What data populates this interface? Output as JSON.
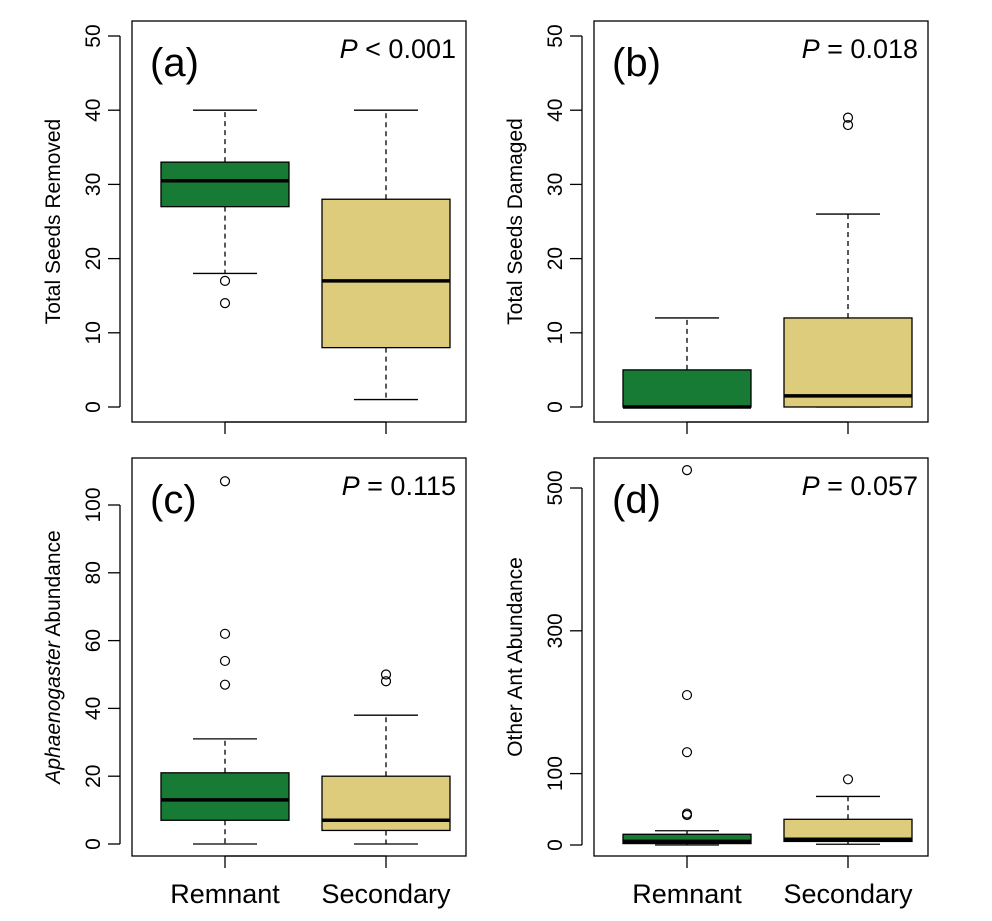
{
  "colors": {
    "remnant": "#177a35",
    "secondary": "#dccc7c"
  },
  "chart_data": [
    {
      "type": "box",
      "panel_label": "(a)",
      "p_prefix": "P",
      "p_rest": " < 0.001",
      "ylabel": "Total Seeds Removed",
      "ylabel_italic": "",
      "ylim": [
        0,
        50
      ],
      "yticks": [
        0,
        10,
        20,
        30,
        40,
        50
      ],
      "categories": [
        "Remnant",
        "Secondary"
      ],
      "show_categories": false,
      "boxes": [
        {
          "min": 18,
          "q1": 27,
          "median": 30.5,
          "q3": 33,
          "max": 40,
          "outliers": [
            17,
            14
          ]
        },
        {
          "min": 1,
          "q1": 8,
          "median": 17,
          "q3": 28,
          "max": 40,
          "outliers": []
        }
      ]
    },
    {
      "type": "box",
      "panel_label": "(b)",
      "p_prefix": "P",
      "p_rest": " = 0.018",
      "ylabel": "Total Seeds Damaged",
      "ylabel_italic": "",
      "ylim": [
        0,
        50
      ],
      "yticks": [
        0,
        10,
        20,
        30,
        40,
        50
      ],
      "categories": [
        "Remnant",
        "Secondary"
      ],
      "show_categories": false,
      "boxes": [
        {
          "min": 0,
          "q1": 0,
          "median": 0,
          "q3": 5,
          "max": 12,
          "outliers": []
        },
        {
          "min": 0,
          "q1": 0,
          "median": 1.5,
          "q3": 12,
          "max": 26,
          "outliers": [
            38,
            39
          ]
        }
      ]
    },
    {
      "type": "box",
      "panel_label": "(c)",
      "p_prefix": "P",
      "p_rest": " = 0.115",
      "ylabel": " Abundance",
      "ylabel_italic": "Aphaenogaster",
      "ylim": [
        0,
        100
      ],
      "yticks": [
        0,
        20,
        40,
        60,
        80,
        100
      ],
      "categories": [
        "Remnant",
        "Secondary"
      ],
      "show_categories": true,
      "boxes": [
        {
          "min": 0,
          "q1": 7,
          "median": 13,
          "q3": 21,
          "max": 31,
          "outliers": [
            47,
            54,
            62,
            107
          ]
        },
        {
          "min": 0,
          "q1": 4,
          "median": 7,
          "q3": 20,
          "max": 38,
          "outliers": [
            48,
            50
          ]
        }
      ]
    },
    {
      "type": "box",
      "panel_label": "(d)",
      "p_prefix": "P",
      "p_rest": " = 0.057",
      "ylabel": "Other Ant Abundance",
      "ylabel_italic": "",
      "ylim": [
        0,
        500
      ],
      "yticks": [
        0,
        100,
        300,
        500
      ],
      "categories": [
        "Remnant",
        "Secondary"
      ],
      "show_categories": true,
      "boxes": [
        {
          "min": 0,
          "q1": 2,
          "median": 5,
          "q3": 15,
          "max": 20,
          "outliers": [
            42,
            44,
            130,
            210,
            525
          ]
        },
        {
          "min": 1,
          "q1": 5,
          "median": 8,
          "q3": 36,
          "max": 68,
          "outliers": [
            92
          ]
        }
      ]
    }
  ]
}
